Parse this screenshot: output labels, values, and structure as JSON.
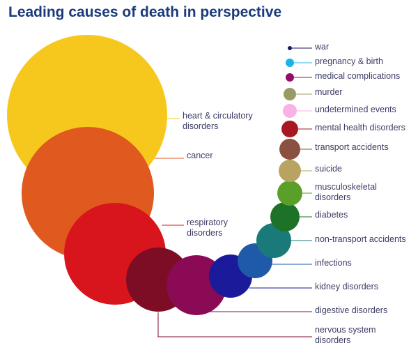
{
  "title": "Leading causes of death in perspective",
  "chart_data": {
    "type": "bubble",
    "title": "Leading causes of death in perspective",
    "series": [
      {
        "label": [
          "heart & circulatory",
          "disorders"
        ],
        "color": "#f6c81e"
      },
      {
        "label": [
          "cancer"
        ],
        "color": "#e05a1f"
      },
      {
        "label": [
          "respiratory",
          "disorders"
        ],
        "color": "#d8141c"
      },
      {
        "label": [
          "nervous system",
          "disorders"
        ],
        "color": "#7c0d24"
      },
      {
        "label": [
          "digestive disorders"
        ],
        "color": "#8b0a55"
      },
      {
        "label": [
          "kidney disorders"
        ],
        "color": "#1a1a9a"
      },
      {
        "label": [
          "infections"
        ],
        "color": "#1e5aa8"
      },
      {
        "label": [
          "non-transport accidents"
        ],
        "color": "#1a7a7a"
      },
      {
        "label": [
          "diabetes"
        ],
        "color": "#1e7228"
      },
      {
        "label": [
          "musculoskeletal",
          "disorders"
        ],
        "color": "#5aa028"
      },
      {
        "label": [
          "suicide"
        ],
        "color": "#b8a460"
      },
      {
        "label": [
          "transport accidents"
        ],
        "color": "#8a5040"
      },
      {
        "label": [
          "mental health disorders"
        ],
        "color": "#a81820"
      },
      {
        "label": [
          "undetermined events"
        ],
        "color": "#f8b2e6"
      },
      {
        "label": [
          "murder"
        ],
        "color": "#9a9a64"
      },
      {
        "label": [
          "medical complications"
        ],
        "color": "#9a0a68"
      },
      {
        "label": [
          "pregnancy & birth"
        ],
        "color": "#1ab4e8"
      },
      {
        "label": [
          "war"
        ],
        "color": "#1a1a5a"
      }
    ]
  }
}
